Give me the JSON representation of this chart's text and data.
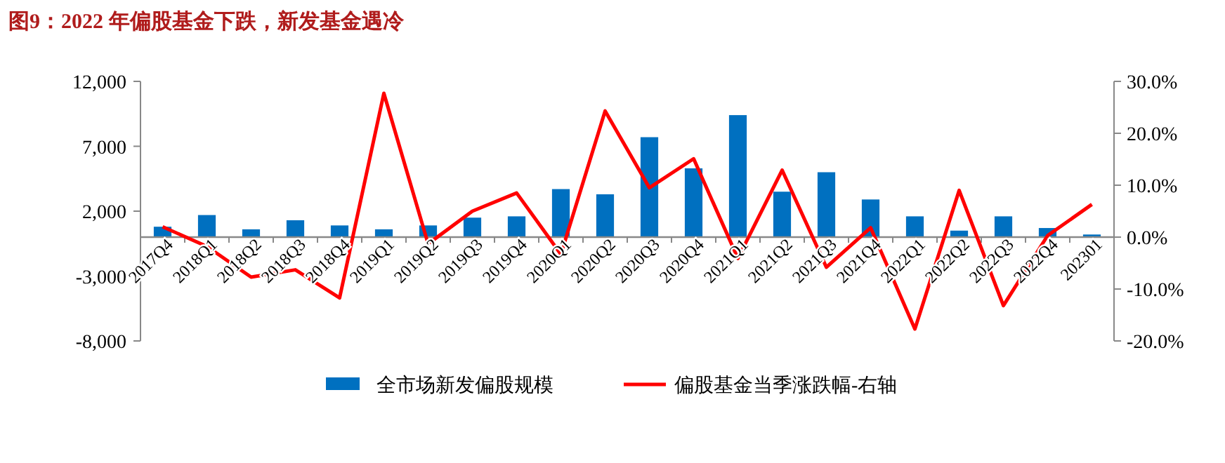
{
  "chart_data": {
    "type": "bar",
    "title": "图9：2022 年偏股基金下跌，新发基金遇冷",
    "categories": [
      "2017Q4",
      "2018Q1",
      "2018Q2",
      "2018Q3",
      "2018Q4",
      "2019Q1",
      "2019Q2",
      "2019Q3",
      "2019Q4",
      "2020Q1",
      "2020Q2",
      "2020Q3",
      "2020Q4",
      "2021Q1",
      "2021Q2",
      "2021Q3",
      "2021Q4",
      "2022Q1",
      "2022Q2",
      "2022Q3",
      "2022Q4",
      "202301"
    ],
    "series": [
      {
        "name": "全市场新发偏股规模",
        "color": "#0070c0",
        "values": [
          800,
          1700,
          600,
          1300,
          900,
          600,
          900,
          1500,
          1600,
          3700,
          3300,
          7700,
          5300,
          9400,
          3500,
          5000,
          2900,
          1600,
          500,
          1600,
          700,
          200
        ]
      },
      {
        "name": "偏股基金当季涨跌幅-右轴",
        "type": "line",
        "axis": "y2",
        "color": "#ff0000",
        "values": [
          2.0,
          -1.8,
          -7.7,
          -6.3,
          -11.7,
          27.7,
          -1.3,
          5.0,
          8.5,
          -3.3,
          24.3,
          9.5,
          15.1,
          -4.1,
          12.9,
          -5.8,
          1.8,
          -17.7,
          9.0,
          -13.2,
          0.3,
          6.3
        ]
      }
    ],
    "ylim": [
      -8000,
      12000
    ],
    "yticks": [
      {
        "value": 12000,
        "label": "12,000"
      },
      {
        "value": 7000,
        "label": "7,000"
      },
      {
        "value": 2000,
        "label": "2,000"
      },
      {
        "value": -3000,
        "label": "-3,000"
      },
      {
        "value": -8000,
        "label": "-8,000"
      }
    ],
    "y2lim": [
      -20,
      30
    ],
    "y2ticks": [
      {
        "value": 30,
        "label": "30.0%"
      },
      {
        "value": 20,
        "label": "20.0%"
      },
      {
        "value": 10,
        "label": "10.0%"
      },
      {
        "value": 0,
        "label": "0.0%"
      },
      {
        "value": -10,
        "label": "-10.0%"
      },
      {
        "value": -20,
        "label": "-20.0%"
      }
    ],
    "legend": "bottom",
    "grid": false
  }
}
